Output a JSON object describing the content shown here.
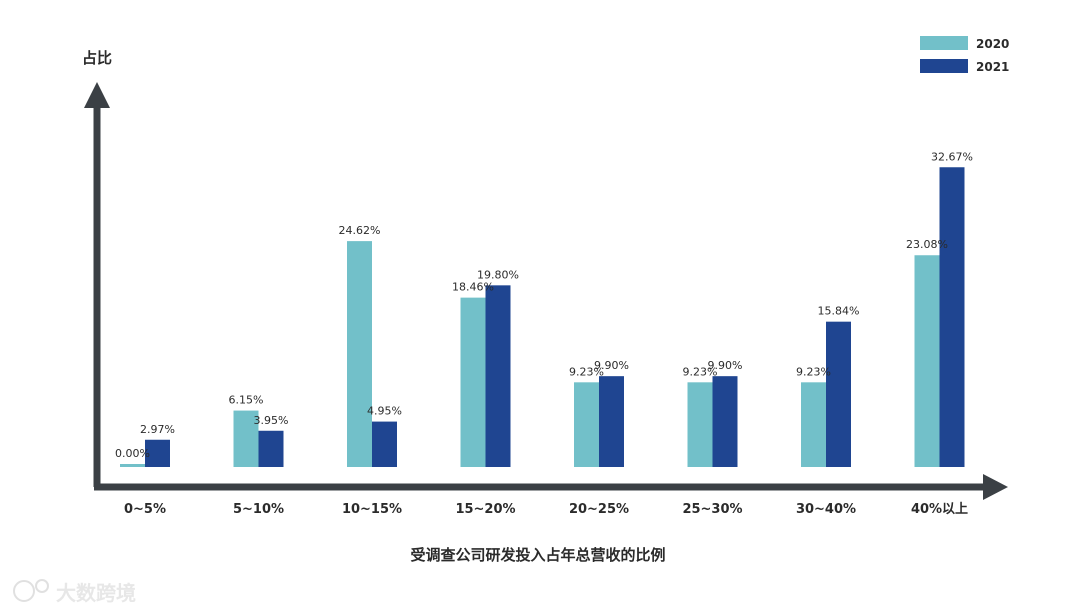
{
  "chart_data": {
    "type": "bar",
    "ylabel": "占比",
    "xlabel": "受调查公司研发投入占年总营收的比例",
    "categories": [
      "0~5%",
      "5~10%",
      "10~15%",
      "15~20%",
      "20~25%",
      "25~30%",
      "30~40%",
      "40%以上"
    ],
    "series": [
      {
        "name": "2020",
        "color": "#72c0c9",
        "values": [
          0.0,
          6.15,
          24.62,
          18.46,
          9.23,
          9.23,
          9.23,
          23.08
        ],
        "labels": [
          "0.00%",
          "6.15%",
          "24.62%",
          "18.46%",
          "9.23%",
          "9.23%",
          "9.23%",
          "23.08%"
        ]
      },
      {
        "name": "2021",
        "color": "#1f4591",
        "values": [
          2.97,
          3.95,
          4.95,
          19.8,
          9.9,
          9.9,
          15.84,
          32.67
        ],
        "labels": [
          "2.97%",
          "3.95%",
          "4.95%",
          "19.80%",
          "9.90%",
          "9.90%",
          "15.84%",
          "32.67%"
        ]
      }
    ],
    "ylim": [
      0,
      40
    ],
    "grid": false,
    "legend_position": "top-right",
    "axis_color": "#3b4045"
  },
  "watermark": "大数跨境"
}
